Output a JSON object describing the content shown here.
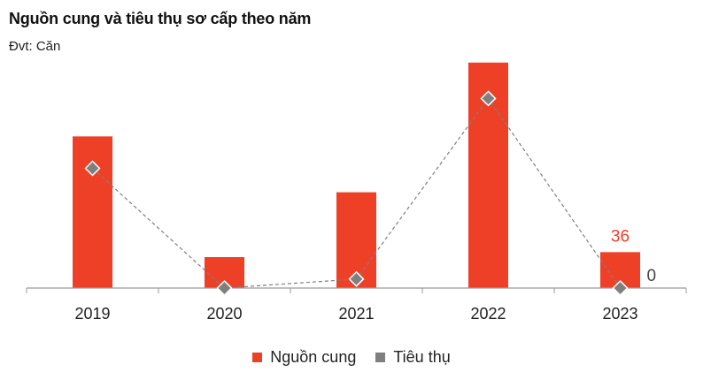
{
  "title": "Nguồn cung và tiêu thụ sơ cấp theo năm",
  "subtitle": "Đvt: Căn",
  "colors": {
    "supply": "#EE4026",
    "consumption": "#7F7F7F",
    "axis": "#9a9a9a"
  },
  "chart_data": {
    "type": "bar",
    "categories": [
      "2019",
      "2020",
      "2021",
      "2022",
      "2023"
    ],
    "series": [
      {
        "name": "Nguồn cung",
        "type": "bar",
        "values": [
          152,
          31,
          96,
          226,
          36
        ]
      },
      {
        "name": "Tiêu thụ",
        "type": "line",
        "values": [
          120,
          0,
          9,
          190,
          0
        ]
      }
    ],
    "data_labels": [
      {
        "series": "Nguồn cung",
        "category": "2023",
        "text": "36"
      },
      {
        "series": "Tiêu thụ",
        "category": "2023",
        "text": "0"
      }
    ],
    "ylim": [
      0,
      240
    ],
    "legend": "bottom-center",
    "grid": false
  }
}
